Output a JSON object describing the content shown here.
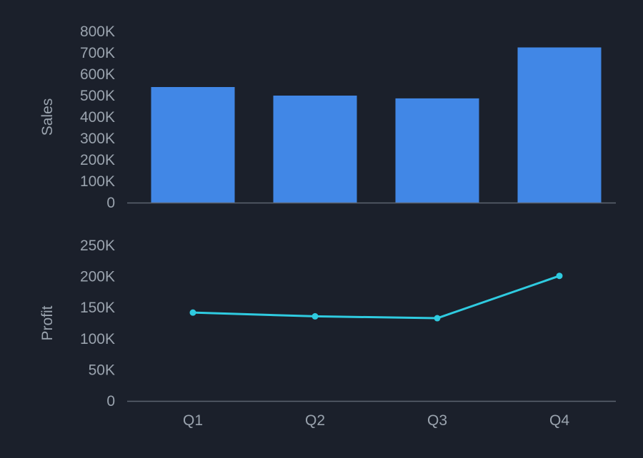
{
  "chart_data": [
    {
      "type": "bar",
      "categories": [
        "Q1",
        "Q2",
        "Q3",
        "Q4"
      ],
      "series": [
        {
          "values": [
            540000,
            500000,
            487000,
            725000
          ]
        }
      ],
      "ylabel": "Sales",
      "ylim": [
        0,
        800000
      ],
      "yticks": [
        0,
        100000,
        200000,
        300000,
        400000,
        500000,
        600000,
        700000,
        800000
      ],
      "ytick_labels": [
        "0",
        "100K",
        "200K",
        "300K",
        "400K",
        "500K",
        "600K",
        "700K",
        "800K"
      ],
      "grid": false,
      "colors": {
        "bar": "#4187e6"
      }
    },
    {
      "type": "line",
      "categories": [
        "Q1",
        "Q2",
        "Q3",
        "Q4"
      ],
      "series": [
        {
          "values": [
            142000,
            136000,
            133000,
            201000
          ]
        }
      ],
      "ylabel": "Profit",
      "ylim": [
        0,
        250000
      ],
      "yticks": [
        0,
        50000,
        100000,
        150000,
        200000,
        250000
      ],
      "ytick_labels": [
        "0",
        "50K",
        "100K",
        "150K",
        "200K",
        "250K"
      ],
      "xtick_labels": [
        "Q1",
        "Q2",
        "Q3",
        "Q4"
      ],
      "grid": false,
      "colors": {
        "line": "#2fcbe0"
      }
    }
  ]
}
